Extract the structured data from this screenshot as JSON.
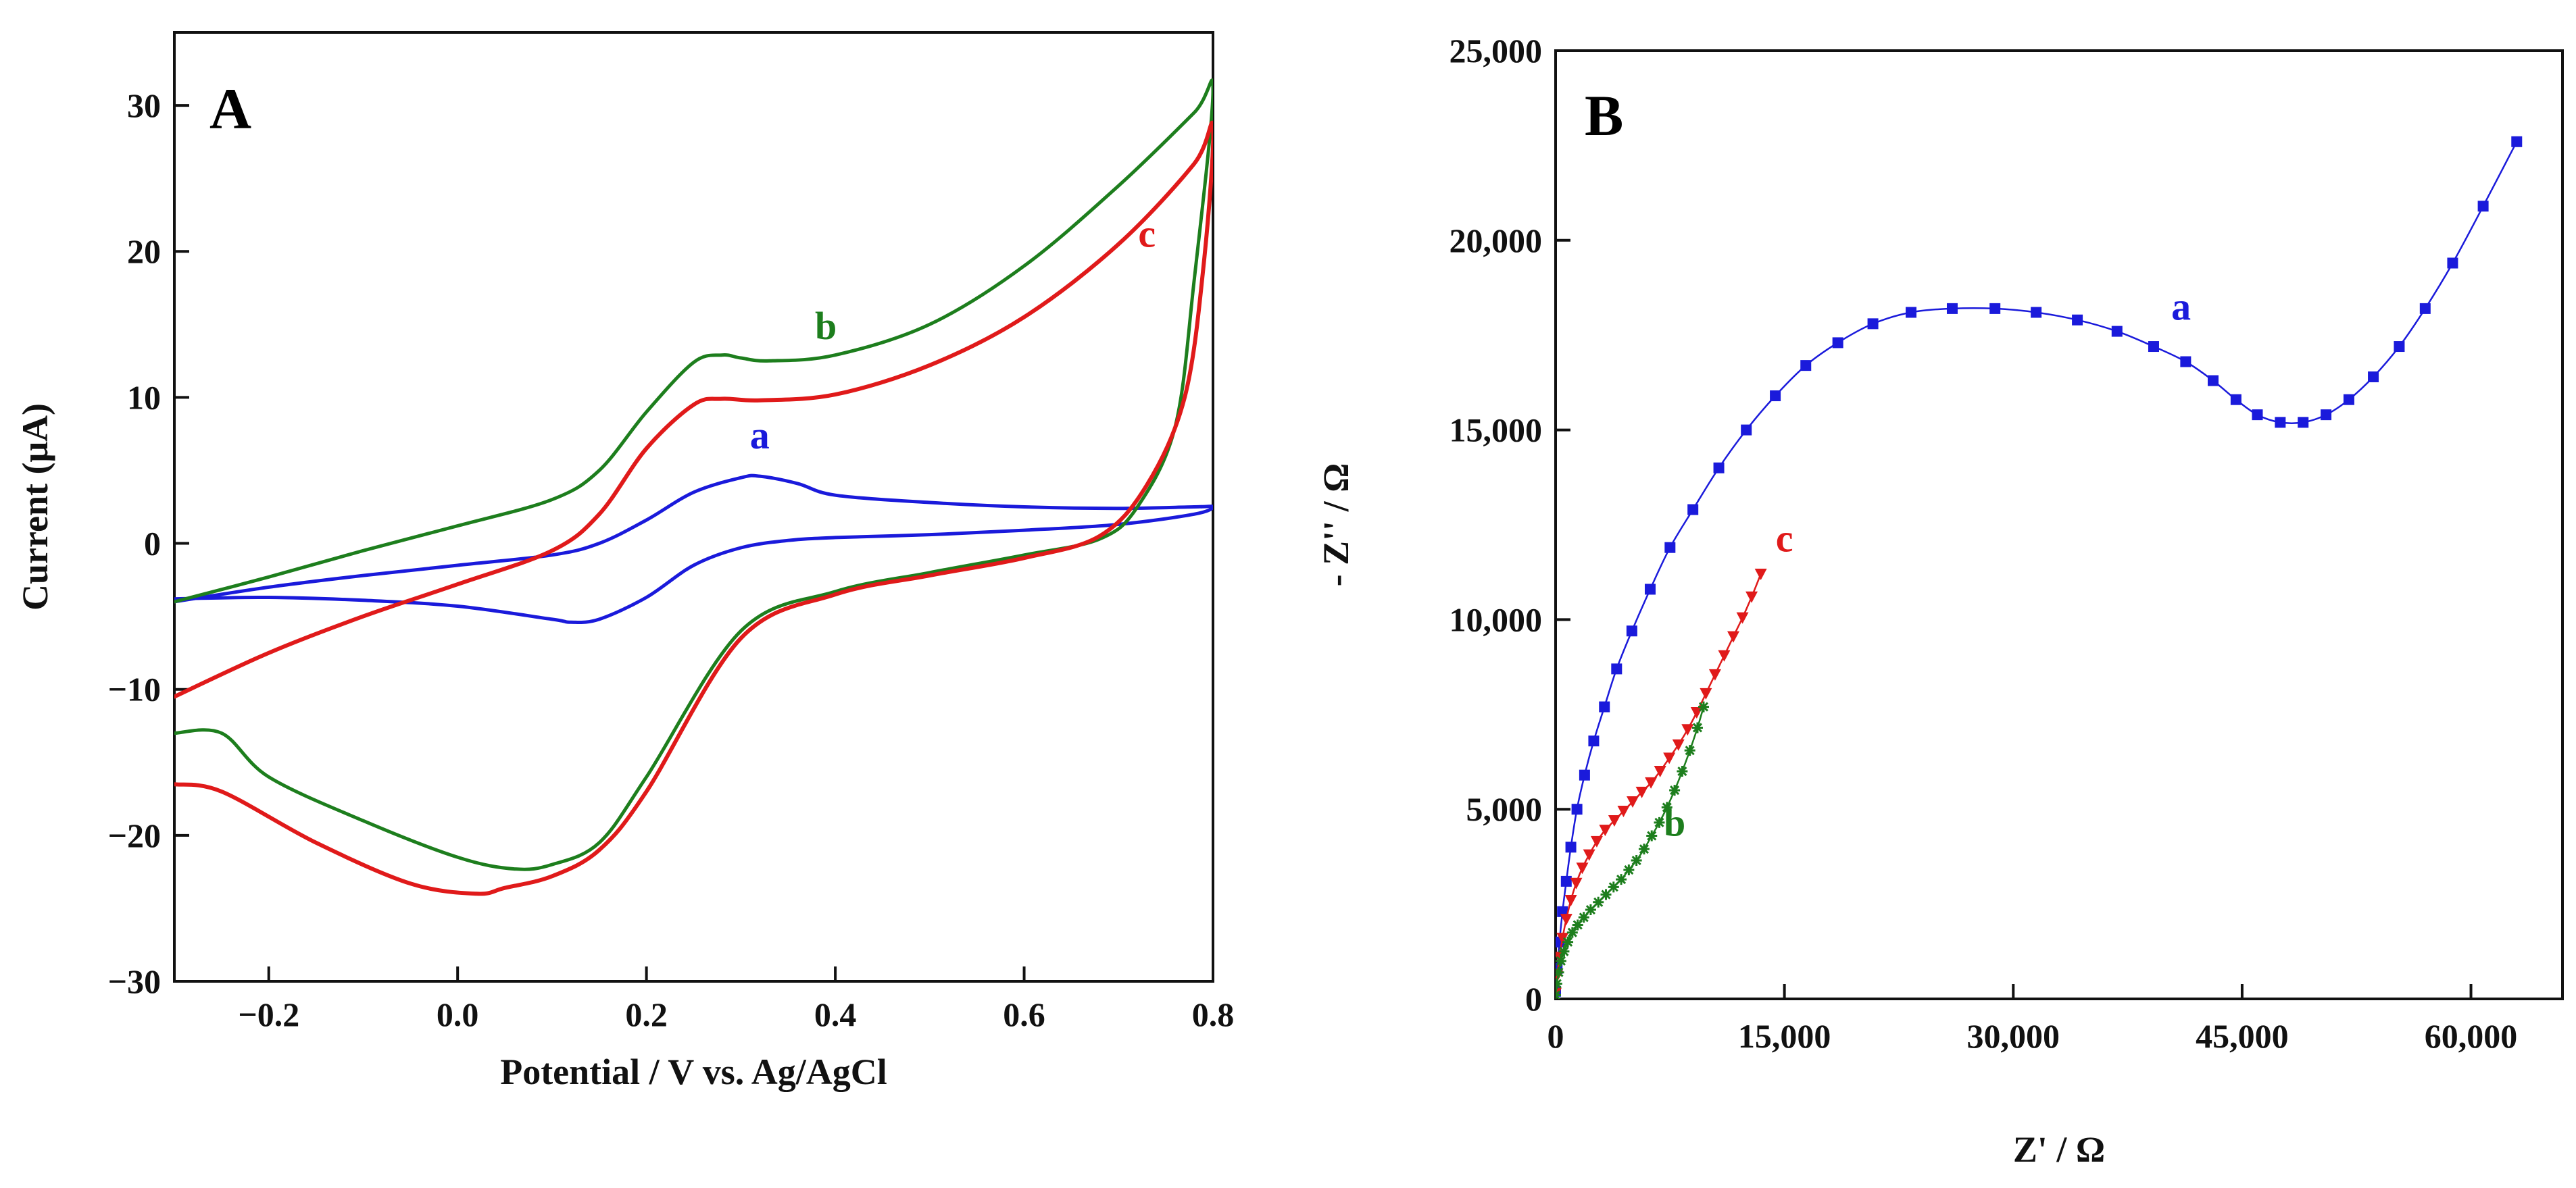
{
  "chart_data": [
    {
      "type": "line",
      "panel": "A",
      "xlabel": "Potential / V vs. Ag/AgCl",
      "ylabel": "Current (μA)",
      "xlim": [
        -0.3,
        0.8
      ],
      "ylim": [
        -30,
        35
      ],
      "xticks": [
        -0.2,
        0.0,
        0.2,
        0.4,
        0.6,
        0.8
      ],
      "xtick_labels": [
        "−0.2",
        "0.0",
        "0.2",
        "0.4",
        "0.6",
        "0.8"
      ],
      "yticks": [
        -30,
        -20,
        -10,
        0,
        10,
        20,
        30
      ],
      "ytick_labels": [
        "−30",
        "−20",
        "−10",
        "0",
        "10",
        "20",
        "30"
      ],
      "grid": false,
      "series": [
        {
          "name": "a",
          "label": "a",
          "color": "#1a1adb",
          "label_at": [
            0.32,
            6.5
          ],
          "x": [
            -0.3,
            -0.2,
            -0.1,
            0.0,
            0.1,
            0.15,
            0.2,
            0.25,
            0.3,
            0.32,
            0.36,
            0.4,
            0.5,
            0.6,
            0.7,
            0.78,
            0.8,
            0.78,
            0.7,
            0.6,
            0.5,
            0.4,
            0.35,
            0.3,
            0.25,
            0.2,
            0.15,
            0.12,
            0.1,
            0.0,
            -0.1,
            -0.2,
            -0.3
          ],
          "y": [
            -4.0,
            -3.0,
            -2.2,
            -1.5,
            -0.8,
            0.0,
            1.6,
            3.5,
            4.5,
            4.6,
            4.1,
            3.3,
            2.8,
            2.5,
            2.4,
            2.5,
            2.5,
            2.0,
            1.3,
            0.9,
            0.6,
            0.4,
            0.2,
            -0.3,
            -1.5,
            -3.7,
            -5.2,
            -5.4,
            -5.2,
            -4.3,
            -3.9,
            -3.7,
            -3.8
          ]
        },
        {
          "name": "b",
          "label": "b",
          "color": "#1d7e1d",
          "label_at": [
            0.39,
            14.0
          ],
          "x": [
            -0.3,
            -0.2,
            -0.1,
            0.0,
            0.1,
            0.15,
            0.2,
            0.25,
            0.28,
            0.3,
            0.33,
            0.4,
            0.5,
            0.6,
            0.7,
            0.78,
            0.8,
            0.78,
            0.76,
            0.72,
            0.68,
            0.6,
            0.5,
            0.4,
            0.3,
            0.2,
            0.15,
            0.1,
            0.06,
            0.0,
            -0.1,
            -0.2,
            -0.25,
            -0.3
          ],
          "y": [
            -4.0,
            -2.3,
            -0.5,
            1.2,
            3.0,
            5.0,
            9.0,
            12.4,
            12.9,
            12.7,
            12.5,
            12.9,
            15.0,
            19.0,
            24.5,
            29.5,
            31.0,
            18.0,
            8.0,
            2.5,
            0.3,
            -0.8,
            -2.0,
            -3.3,
            -6.0,
            -16.0,
            -20.5,
            -22.0,
            -22.3,
            -21.5,
            -19.0,
            -16.0,
            -13.0,
            -13.0
          ]
        },
        {
          "name": "c",
          "label": "c",
          "color": "#e01a1a",
          "label_at": [
            0.73,
            20.3
          ],
          "x": [
            -0.3,
            -0.2,
            -0.1,
            0.0,
            0.1,
            0.15,
            0.2,
            0.25,
            0.28,
            0.32,
            0.4,
            0.5,
            0.6,
            0.7,
            0.78,
            0.8,
            0.79,
            0.77,
            0.73,
            0.68,
            0.6,
            0.5,
            0.4,
            0.3,
            0.2,
            0.15,
            0.1,
            0.05,
            0.02,
            -0.05,
            -0.15,
            -0.25,
            -0.3
          ],
          "y": [
            -10.5,
            -7.5,
            -5.0,
            -2.8,
            -0.5,
            2.0,
            6.5,
            9.5,
            9.9,
            9.8,
            10.2,
            12.2,
            15.5,
            20.5,
            26.0,
            28.5,
            19.0,
            10.0,
            4.0,
            0.5,
            -1.0,
            -2.2,
            -3.5,
            -6.5,
            -17.0,
            -21.0,
            -22.8,
            -23.6,
            -24.0,
            -23.3,
            -20.5,
            -17.0,
            -16.5
          ]
        }
      ]
    },
    {
      "type": "scatter",
      "panel": "B",
      "xlabel": "Z' / Ω",
      "ylabel": "- Z'' / Ω",
      "xlim": [
        0,
        66000
      ],
      "ylim": [
        0,
        25000
      ],
      "xticks": [
        0,
        15000,
        30000,
        45000,
        60000
      ],
      "xtick_labels": [
        "0",
        "15,000",
        "30,000",
        "45,000",
        "60,000"
      ],
      "yticks": [
        0,
        5000,
        10000,
        15000,
        20000,
        25000
      ],
      "ytick_labels": [
        "0",
        "5,000",
        "10,000",
        "15,000",
        "20,000",
        "25,000"
      ],
      "grid": false,
      "series": [
        {
          "name": "a",
          "label": "a",
          "color": "#1a1adb",
          "marker": "square",
          "connected": true,
          "label_at": [
            41000,
            17900
          ],
          "x": [
            0,
            100,
            250,
            450,
            700,
            1000,
            1400,
            1900,
            2500,
            3200,
            4000,
            5000,
            6200,
            7500,
            9000,
            10700,
            12500,
            14400,
            16400,
            18500,
            20800,
            23300,
            26000,
            28800,
            31500,
            34200,
            36800,
            39200,
            41300,
            43100,
            44600,
            46000,
            47500,
            49000,
            50500,
            52000,
            53600,
            55300,
            57000,
            58800,
            60800,
            63000
          ],
          "y": [
            200,
            800,
            1500,
            2300,
            3100,
            4000,
            5000,
            5900,
            6800,
            7700,
            8700,
            9700,
            10800,
            11900,
            12900,
            14000,
            15000,
            15900,
            16700,
            17300,
            17800,
            18100,
            18200,
            18200,
            18100,
            17900,
            17600,
            17200,
            16800,
            16300,
            15800,
            15400,
            15200,
            15200,
            15400,
            15800,
            16400,
            17200,
            18200,
            19400,
            20900,
            22600
          ]
        },
        {
          "name": "c",
          "label": "c",
          "color": "#e01a1a",
          "marker": "triangle-down",
          "connected": true,
          "label_at": [
            15000,
            11800
          ],
          "x": [
            0,
            100,
            250,
            450,
            700,
            1000,
            1350,
            1750,
            2200,
            2700,
            3250,
            3850,
            4450,
            5050,
            5650,
            6250,
            6850,
            7450,
            8050,
            8650,
            9250,
            9850,
            10450,
            11050,
            11650,
            12250,
            12850,
            13450
          ],
          "y": [
            150,
            600,
            1100,
            1600,
            2100,
            2600,
            3050,
            3450,
            3800,
            4150,
            4450,
            4700,
            4950,
            5200,
            5450,
            5700,
            6000,
            6350,
            6700,
            7100,
            7550,
            8050,
            8550,
            9050,
            9550,
            10050,
            10600,
            11200
          ]
        },
        {
          "name": "b",
          "label": "b",
          "color": "#1d7e1d",
          "marker": "asterisk",
          "connected": true,
          "label_at": [
            7800,
            4300
          ],
          "x": [
            0,
            80,
            200,
            350,
            550,
            800,
            1100,
            1450,
            1850,
            2300,
            2800,
            3300,
            3800,
            4300,
            4800,
            5300,
            5800,
            6300,
            6800,
            7300,
            7800,
            8300,
            8800,
            9300,
            9700
          ],
          "y": [
            100,
            400,
            700,
            1000,
            1250,
            1500,
            1750,
            1950,
            2150,
            2350,
            2550,
            2750,
            2950,
            3150,
            3400,
            3650,
            3950,
            4300,
            4650,
            5050,
            5500,
            6000,
            6550,
            7150,
            7700
          ]
        }
      ]
    }
  ]
}
